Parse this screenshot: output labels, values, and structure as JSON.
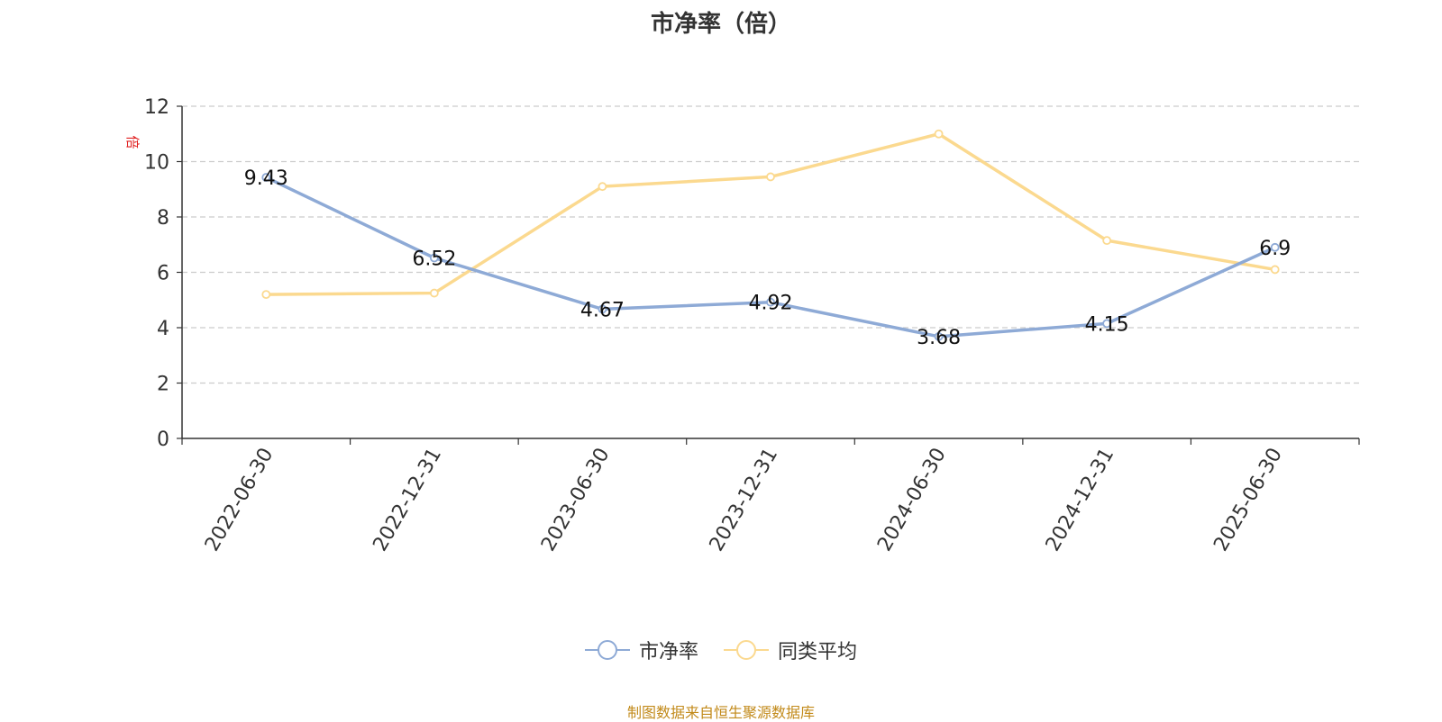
{
  "chart_data": {
    "type": "line",
    "title": "市净率（倍）",
    "ylabel": "倍",
    "ylim": [
      0,
      12
    ],
    "yticks": [
      "0",
      "2",
      "4",
      "6",
      "8",
      "10",
      "12"
    ],
    "categories": [
      "2022-06-30",
      "2022-12-31",
      "2023-06-30",
      "2023-12-31",
      "2024-06-30",
      "2024-12-31",
      "2025-06-30"
    ],
    "series": [
      {
        "name": "市净率",
        "color": "#8eaad6",
        "values": [
          9.43,
          6.52,
          4.67,
          4.92,
          3.68,
          4.15,
          6.9
        ],
        "labels": [
          "9.43",
          "6.52",
          "4.67",
          "4.92",
          "3.68",
          "4.15",
          "6.9"
        ]
      },
      {
        "name": "同类平均",
        "color": "#fbd98f",
        "values": [
          5.2,
          5.25,
          9.1,
          9.45,
          11.0,
          7.15,
          6.1
        ]
      }
    ],
    "grid": true,
    "legend_position": "bottom"
  },
  "source_text": "制图数据来自恒生聚源数据库"
}
